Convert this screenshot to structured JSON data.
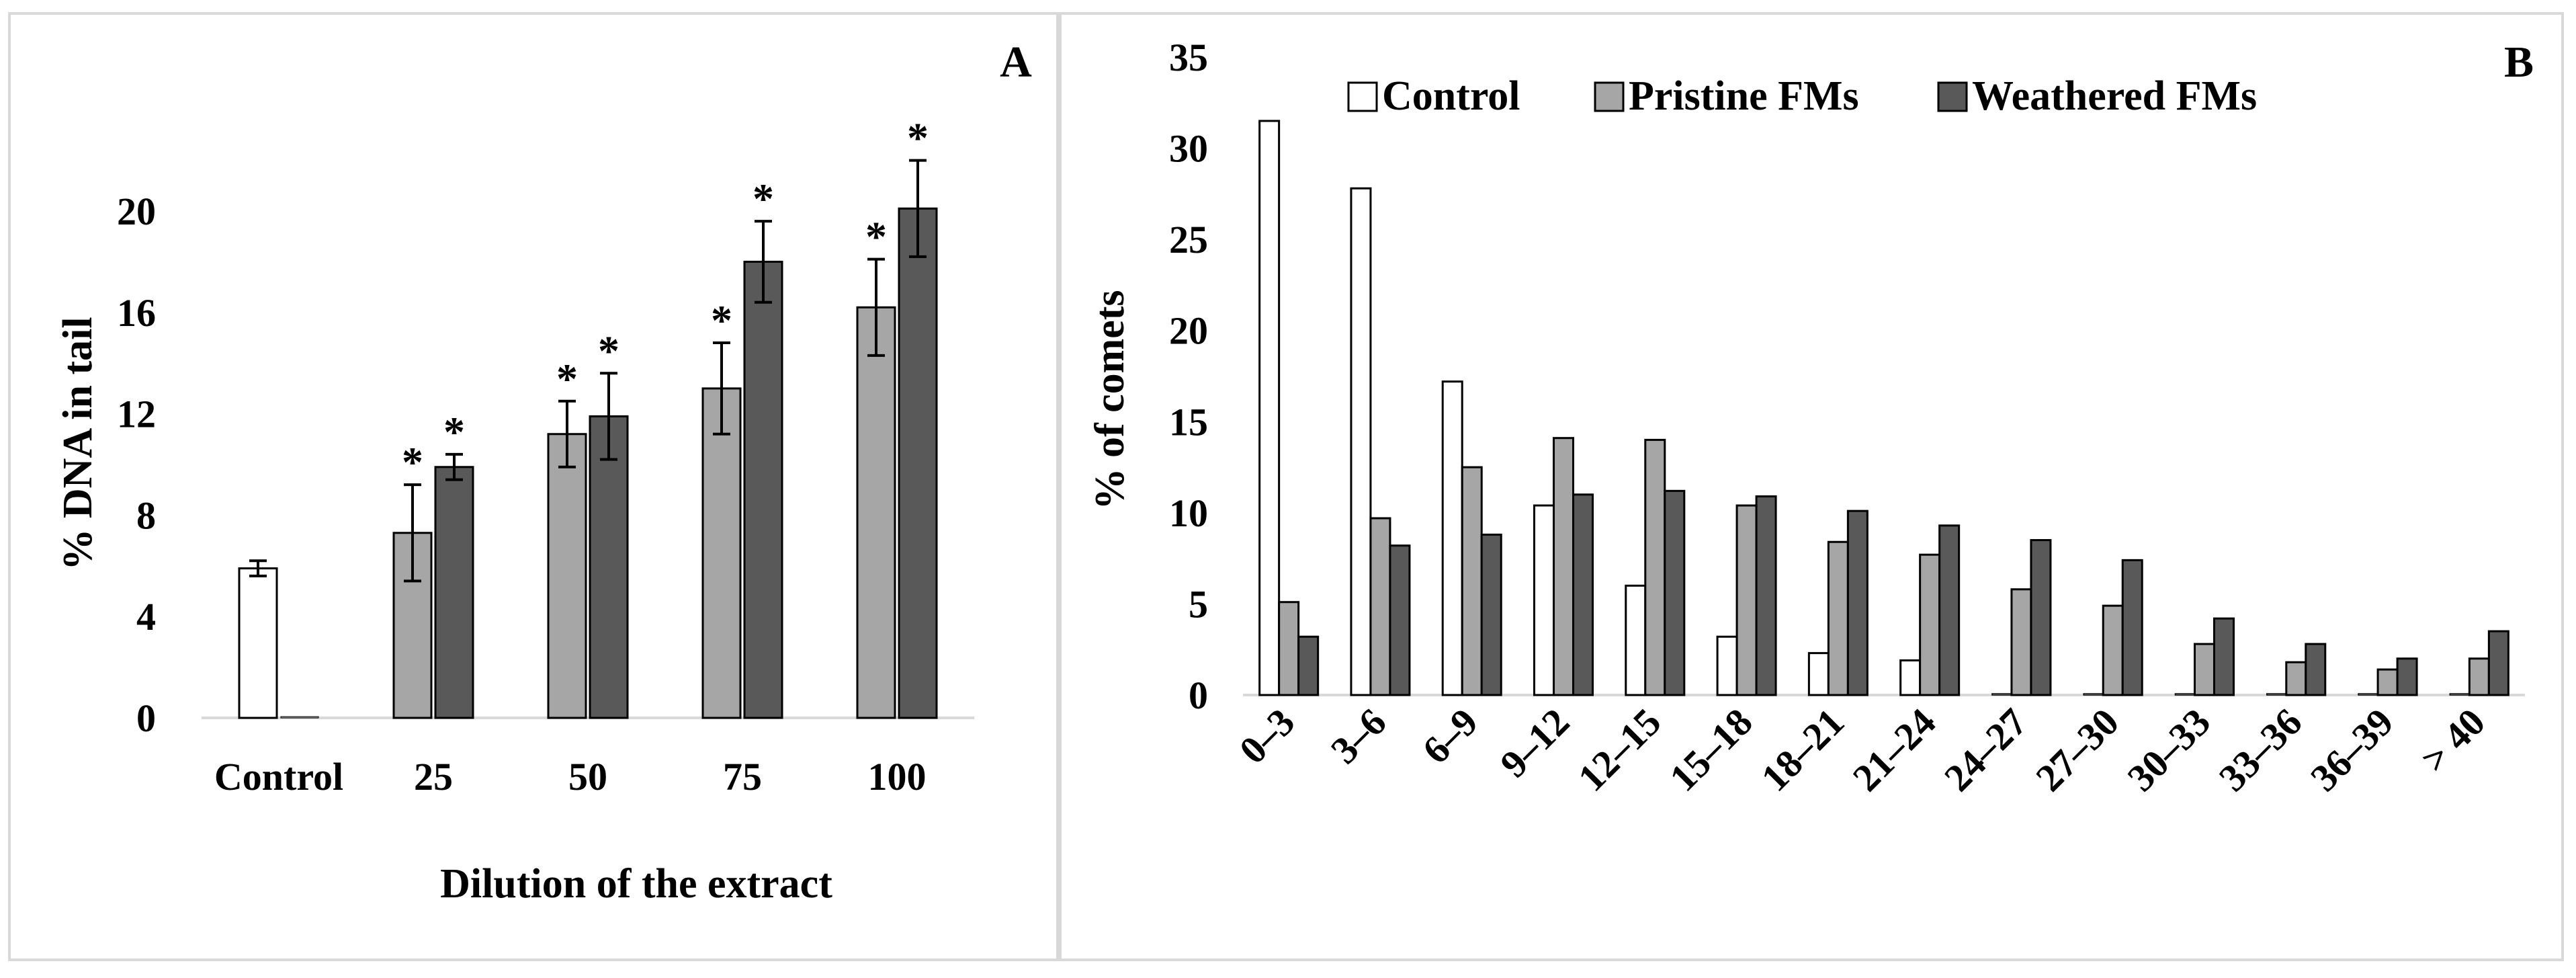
{
  "panels": {
    "A": {
      "label": "A"
    },
    "B": {
      "label": "B"
    }
  },
  "colors": {
    "control": "#ffffff",
    "pristine": "#a6a6a6",
    "weathered": "#595959",
    "outline": "#000000"
  },
  "chart_data": [
    {
      "type": "bar",
      "panel": "A",
      "title": "",
      "xlabel": "Dilution of the extract",
      "ylabel": "% DNA in tail",
      "ylim": [
        0,
        22
      ],
      "yticks": [
        0,
        4,
        8,
        12,
        16,
        20
      ],
      "grid": false,
      "categories": [
        "Control",
        "25",
        "50",
        "75",
        "100"
      ],
      "series": [
        {
          "style": "control",
          "values": [
            5.9,
            0,
            0,
            0,
            0
          ],
          "errors": [
            0.3,
            0,
            0,
            0,
            0
          ]
        },
        {
          "style": "pristine",
          "values": [
            0.05,
            7.3,
            11.2,
            13.0,
            16.2
          ],
          "errors": [
            0,
            1.9,
            1.3,
            1.8,
            1.9
          ]
        },
        {
          "style": "weathered",
          "values": [
            0,
            9.9,
            11.9,
            18.0,
            20.1
          ],
          "errors": [
            0,
            0.5,
            1.7,
            1.6,
            1.9
          ]
        }
      ],
      "significance_marker": "*",
      "significant_categories": [
        "25",
        "50",
        "75",
        "100"
      ]
    },
    {
      "type": "bar",
      "panel": "B",
      "title": "",
      "xlabel": "",
      "ylabel": "% of comets",
      "ylim": [
        0,
        35
      ],
      "yticks": [
        0,
        5,
        10,
        15,
        20,
        25,
        30,
        35
      ],
      "grid": false,
      "legend_position": "top",
      "categories": [
        "0–3",
        "3–6",
        "6–9",
        "9–12",
        "12–15",
        "15–18",
        "18–21",
        "21–24",
        "24–27",
        "27–30",
        "30–33",
        "33–36",
        "36–39",
        "> 40"
      ],
      "series": [
        {
          "name": "Control",
          "style": "control",
          "values": [
            31.5,
            27.8,
            17.2,
            10.4,
            6.0,
            3.2,
            2.3,
            1.9,
            0,
            0,
            0,
            0,
            0,
            0
          ]
        },
        {
          "name": "Pristine FMs",
          "style": "pristine",
          "values": [
            5.1,
            9.7,
            12.5,
            14.1,
            14.0,
            10.4,
            8.4,
            7.7,
            5.8,
            4.9,
            2.8,
            1.8,
            1.4,
            2.0
          ]
        },
        {
          "name": "Weathered FMs",
          "style": "weathered",
          "values": [
            3.2,
            8.2,
            8.8,
            11.0,
            11.2,
            10.9,
            10.1,
            9.3,
            8.5,
            7.4,
            4.2,
            2.8,
            2.0,
            3.5
          ]
        }
      ]
    }
  ]
}
